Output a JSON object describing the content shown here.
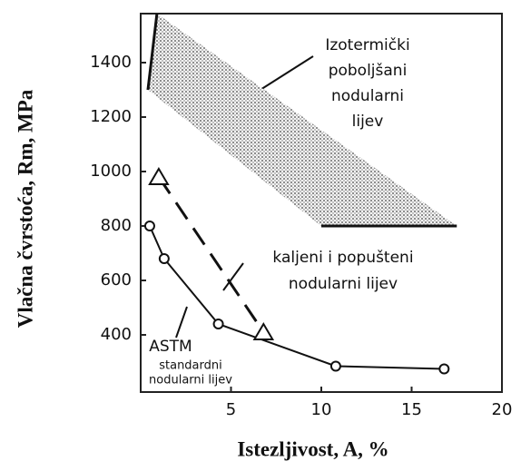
{
  "chart_data": {
    "type": "line",
    "xlabel": "Istezljivost, A, %",
    "ylabel": "Vlačna čvrstoća, Rm, MPa",
    "xlim": [
      0,
      20
    ],
    "xticks": [
      5,
      10,
      15,
      20
    ],
    "ylim": [
      190,
      1580
    ],
    "yticks": [
      400,
      600,
      800,
      1000,
      1200,
      1400
    ],
    "band": {
      "x": [
        0.4,
        0.9,
        17.5,
        10
      ],
      "values": [
        1300,
        1580,
        800,
        800
      ]
    },
    "series": [
      {
        "marker": "circle",
        "dashed": false,
        "x": [
          0.5,
          1.3,
          4.3,
          10.8,
          16.8
        ],
        "values": [
          800,
          680,
          440,
          285,
          275
        ]
      },
      {
        "marker": "triangle",
        "dashed": true,
        "x": [
          1,
          6.8
        ],
        "values": [
          980,
          410
        ]
      }
    ],
    "annotations": [
      {
        "lines": [
          "Izotermički",
          "poboljšani",
          "nodularni",
          "lijev"
        ]
      },
      {
        "lines": [
          "kaljeni i popušteni",
          "nodularni lijev"
        ]
      },
      {
        "lines": [
          "ASTM"
        ]
      },
      {
        "lines": [
          "standardni",
          "nodularni lijev"
        ]
      }
    ]
  }
}
